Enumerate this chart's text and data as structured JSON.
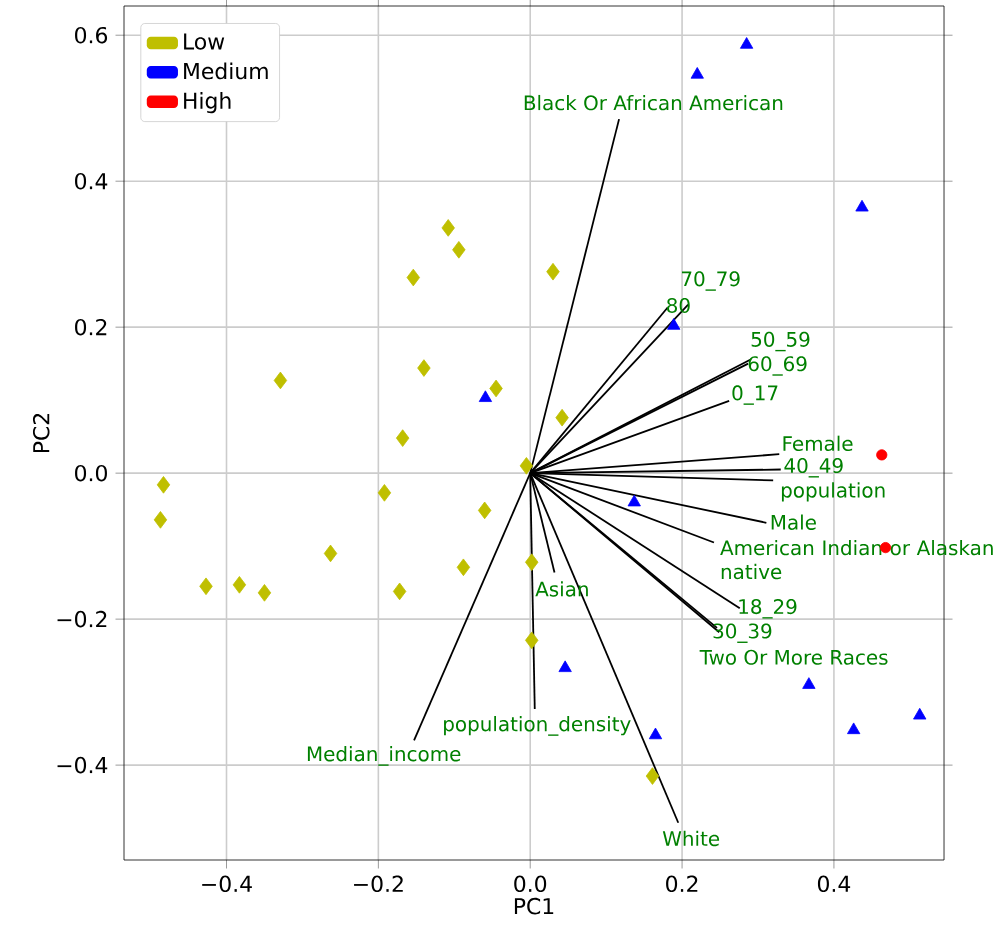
{
  "chart_data": {
    "type": "scatter",
    "xlabel": "PC1",
    "ylabel": "PC2",
    "xlim": [
      -0.535,
      0.545
    ],
    "ylim": [
      -0.53,
      0.64
    ],
    "xticks": [
      {
        "value": -0.4,
        "label": "−0.4"
      },
      {
        "value": -0.2,
        "label": "−0.2"
      },
      {
        "value": 0,
        "label": "0.0"
      },
      {
        "value": 0.2,
        "label": "0.2"
      },
      {
        "value": 0.4,
        "label": "0.4"
      }
    ],
    "yticks": [
      {
        "value": -0.4,
        "label": "−0.4"
      },
      {
        "value": -0.2,
        "label": "−0.2"
      },
      {
        "value": 0,
        "label": "0.0"
      },
      {
        "value": 0.2,
        "label": "0.2"
      },
      {
        "value": 0.4,
        "label": "0.4"
      },
      {
        "value": 0.6,
        "label": "0.6"
      }
    ],
    "grid": true,
    "legend": "top left",
    "series": [
      {
        "name": "Low",
        "type": "scatter",
        "marker": "diamond",
        "color": "#bfbf00",
        "x": [
          -0.108,
          -0.094,
          -0.154,
          -0.14,
          -0.045,
          -0.329,
          -0.168,
          0.03,
          0.042,
          -0.483,
          -0.487,
          -0.192,
          -0.06,
          -0.263,
          -0.088,
          -0.427,
          -0.383,
          -0.35,
          -0.172,
          -0.005,
          0.002,
          0.002,
          0.161
        ],
        "values": [
          0.336,
          0.306,
          0.268,
          0.144,
          0.116,
          0.127,
          0.048,
          0.276,
          0.076,
          -0.016,
          -0.064,
          -0.027,
          -0.051,
          -0.11,
          -0.129,
          -0.155,
          -0.153,
          -0.164,
          -0.162,
          0.01,
          -0.122,
          -0.229,
          -0.415
        ]
      },
      {
        "name": "Medium",
        "type": "scatter",
        "marker": "triangle",
        "color": "#0000ff",
        "x": [
          -0.059,
          0.285,
          0.22,
          0.437,
          0.189,
          0.137,
          0.046,
          0.165,
          0.367,
          0.426,
          0.513
        ],
        "values": [
          0.103,
          0.587,
          0.546,
          0.364,
          0.202,
          -0.04,
          -0.267,
          -0.359,
          -0.29,
          -0.352,
          -0.332
        ]
      },
      {
        "name": "High",
        "type": "scatter",
        "marker": "circle",
        "color": "#ff0000",
        "x": [
          0.463,
          0.468
        ],
        "values": [
          0.025,
          -0.102
        ]
      },
      {
        "name": "Black Or African American",
        "type": "line",
        "color": "#000000",
        "x": [
          0,
          0.117
        ],
        "values": [
          0,
          0.485
        ]
      },
      {
        "name": "80",
        "type": "line",
        "color": "#000000",
        "x": [
          0,
          0.181
        ],
        "values": [
          0,
          0.227
        ]
      },
      {
        "name": "70_79",
        "type": "line",
        "color": "#000000",
        "x": [
          0,
          0.208
        ],
        "values": [
          0,
          0.231
        ]
      },
      {
        "name": "50_59",
        "type": "line",
        "color": "#000000",
        "x": [
          0,
          0.291
        ],
        "values": [
          0,
          0.156
        ]
      },
      {
        "name": "60_69",
        "type": "line",
        "color": "#000000",
        "x": [
          0,
          0.287
        ],
        "values": [
          0,
          0.15
        ]
      },
      {
        "name": "0_17",
        "type": "line",
        "color": "#000000",
        "x": [
          0,
          0.262
        ],
        "values": [
          0,
          0.099
        ]
      },
      {
        "name": "Female",
        "type": "line",
        "color": "#000000",
        "x": [
          0,
          0.328
        ],
        "values": [
          0,
          0.026
        ]
      },
      {
        "name": "40_49",
        "type": "line",
        "color": "#000000",
        "x": [
          0,
          0.33
        ],
        "values": [
          0,
          0.005
        ]
      },
      {
        "name": "population",
        "type": "line",
        "color": "#000000",
        "x": [
          0,
          0.32
        ],
        "values": [
          0,
          -0.01
        ]
      },
      {
        "name": "Male",
        "type": "line",
        "color": "#000000",
        "x": [
          0,
          0.311
        ],
        "values": [
          0,
          -0.068
        ]
      },
      {
        "name": "American Indian or Alaskan native",
        "type": "line",
        "color": "#000000",
        "x": [
          0,
          0.242
        ],
        "values": [
          0,
          -0.095
        ]
      },
      {
        "name": "18_29",
        "type": "line",
        "color": "#000000",
        "x": [
          0,
          0.276
        ],
        "values": [
          0,
          -0.185
        ]
      },
      {
        "name": "Two Or More Races",
        "type": "line",
        "color": "#000000",
        "x": [
          0,
          0.249
        ],
        "values": [
          0,
          -0.218
        ]
      },
      {
        "name": "30_39",
        "type": "line",
        "color": "#000000",
        "x": [
          0,
          0.246
        ],
        "values": [
          0,
          -0.212
        ]
      },
      {
        "name": "Asian",
        "type": "line",
        "color": "#000000",
        "x": [
          0,
          0.032
        ],
        "values": [
          0,
          -0.136
        ]
      },
      {
        "name": "population_density",
        "type": "line",
        "color": "#000000",
        "x": [
          0,
          0.006
        ],
        "values": [
          0,
          -0.323
        ]
      },
      {
        "name": "White",
        "type": "line",
        "color": "#000000",
        "x": [
          0,
          0.195
        ],
        "values": [
          0,
          -0.479
        ]
      },
      {
        "name": "Median_income",
        "type": "line",
        "color": "#000000",
        "x": [
          0,
          -0.153
        ],
        "values": [
          0,
          -0.366
        ]
      }
    ]
  }
}
